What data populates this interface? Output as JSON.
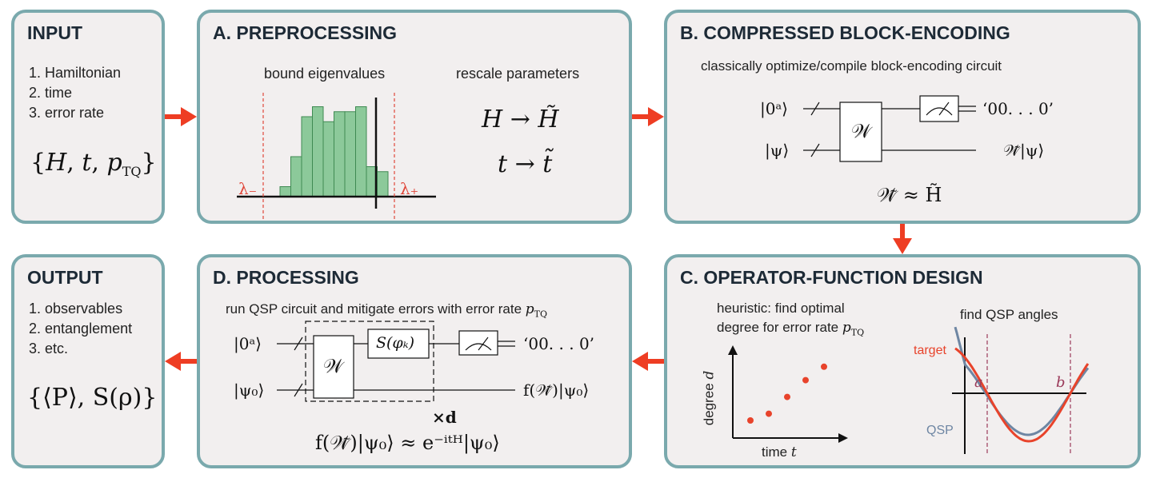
{
  "input": {
    "title": "INPUT",
    "items": [
      "1. Hamiltonian",
      "2. time",
      "3. error rate"
    ],
    "set": "{H, t, p_TQ}"
  },
  "preprocessing": {
    "title": "A. PREPROCESSING",
    "bound_label": "bound eigenvalues",
    "rescale_label": "rescale parameters",
    "lambda_minus": "λ₋",
    "lambda_plus": "λ₊",
    "map_h": "H → H̃",
    "map_t": "t → t̃",
    "histogram_bins": [
      1,
      4,
      8,
      9,
      7.5,
      8.5,
      8.5,
      9,
      3,
      2.5
    ]
  },
  "block_encoding": {
    "title": "B. COMPRESSED BLOCK-ENCODING",
    "subtitle": "classically optimize/compile block-encoding circuit",
    "ket_ancilla": "|0ᵃ⟩",
    "ket_psi": "|ψ⟩",
    "gate": "𝒲",
    "out_ancilla": "‘00. . . 0’",
    "out_psi": "𝒲̃|ψ⟩",
    "relation": "𝒲̃ ≈ H̃"
  },
  "operator_design": {
    "title": "C. OPERATOR-FUNCTION DESIGN",
    "heuristic_line1": "heuristic: find optimal",
    "heuristic_line2": "degree for error rate p_TQ",
    "qsp_label": "find QSP angles",
    "ylabel": "degree d",
    "xlabel": "time t",
    "target_label": "target",
    "qsp_curve_label": "QSP",
    "a_label": "a",
    "b_label": "b",
    "colors": {
      "target": "#e8432b",
      "qsp": "#6e86a3",
      "dots": "#e8432b",
      "dashed": "#9b3a5a"
    }
  },
  "processing": {
    "title": "D. PROCESSING",
    "subtitle": "run QSP circuit and mitigate errors with error rate p_TQ",
    "ket_ancilla": "|0ᵃ⟩",
    "ket_psi0": "|ψ₀⟩",
    "gate_w": "𝒲",
    "gate_s": "S(φₖ)",
    "out_ancilla": "‘00. . . 0’",
    "out_psi": "f(𝒲̃)|ψ₀⟩",
    "repeat": "×d",
    "relation": "f(𝒲̃)|ψ₀⟩ ≈ e⁻ⁱᵗᴴ|ψ₀⟩"
  },
  "output": {
    "title": "OUTPUT",
    "items": [
      "1. observables",
      "2. entanglement",
      "3. etc."
    ],
    "set": "{⟨P⟩, S(ρ)}"
  },
  "chart_data": [
    {
      "type": "scatter",
      "title": "heuristic: find optimal degree for error rate p_TQ",
      "xlabel": "time t",
      "ylabel": "degree d",
      "x": [
        1,
        2,
        3,
        4,
        5
      ],
      "y": [
        1,
        1.4,
        2.4,
        3.4,
        4.2
      ],
      "grid": false
    },
    {
      "type": "line",
      "title": "find QSP angles",
      "series": [
        {
          "name": "target"
        },
        {
          "name": "QSP"
        }
      ],
      "annotations": [
        "a",
        "b"
      ],
      "grid": false
    }
  ]
}
